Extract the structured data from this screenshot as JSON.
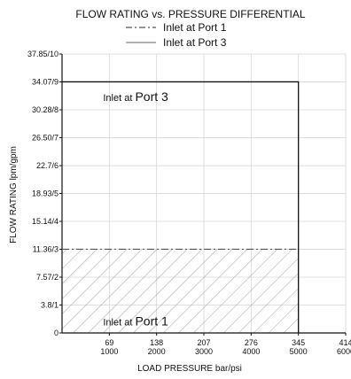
{
  "chart_data": {
    "type": "line",
    "title": "FLOW RATING vs. PRESSURE DIFFERENTIAL",
    "xlabel": "LOAD PRESSURE bar/psi",
    "ylabel": "FLOW RATING  lpm/gpm",
    "x_ticks": [
      {
        "value": 0,
        "label1": "",
        "label2": ""
      },
      {
        "value": 69,
        "label1": "69",
        "label2": "1000"
      },
      {
        "value": 138,
        "label1": "138",
        "label2": "2000"
      },
      {
        "value": 207,
        "label1": "207",
        "label2": "3000"
      },
      {
        "value": 276,
        "label1": "276",
        "label2": "4000"
      },
      {
        "value": 345,
        "label1": "345",
        "label2": "5000"
      },
      {
        "value": 414,
        "label1": "414",
        "label2": "6000"
      }
    ],
    "y_ticks": [
      {
        "value": 0,
        "label": "0"
      },
      {
        "value": 3.8,
        "label": "3.8/1"
      },
      {
        "value": 7.57,
        "label": "7.57/2"
      },
      {
        "value": 11.36,
        "label": "11.36/3"
      },
      {
        "value": 15.14,
        "label": "15.14/4"
      },
      {
        "value": 18.93,
        "label": "18.93/5"
      },
      {
        "value": 22.7,
        "label": "22.7/6"
      },
      {
        "value": 26.5,
        "label": "26.50/7"
      },
      {
        "value": 30.28,
        "label": "30.28/8"
      },
      {
        "value": 34.07,
        "label": "34.07/9"
      },
      {
        "value": 37.85,
        "label": "37.85/10"
      }
    ],
    "xlim": [
      0,
      414
    ],
    "ylim": [
      0,
      37.85
    ],
    "grid": true,
    "legend_position": "top-center",
    "series": [
      {
        "name": "Inlet at Port 1",
        "style": "dash-dot",
        "color": "#555555",
        "x": [
          0,
          345
        ],
        "y": [
          11.36,
          11.36
        ],
        "hatched_region": true
      },
      {
        "name": "Inlet at Port 3",
        "style": "solid",
        "color": "#111111",
        "x": [
          0,
          345,
          345
        ],
        "y": [
          34.07,
          34.07,
          0
        ]
      }
    ],
    "annotations": [
      {
        "prefix": "Inlet at ",
        "emph": "Port 3",
        "x": 60,
        "y": 31.5
      },
      {
        "prefix": "Inlet at ",
        "emph": "Port 1",
        "x": 60,
        "y": 1.0
      }
    ]
  }
}
